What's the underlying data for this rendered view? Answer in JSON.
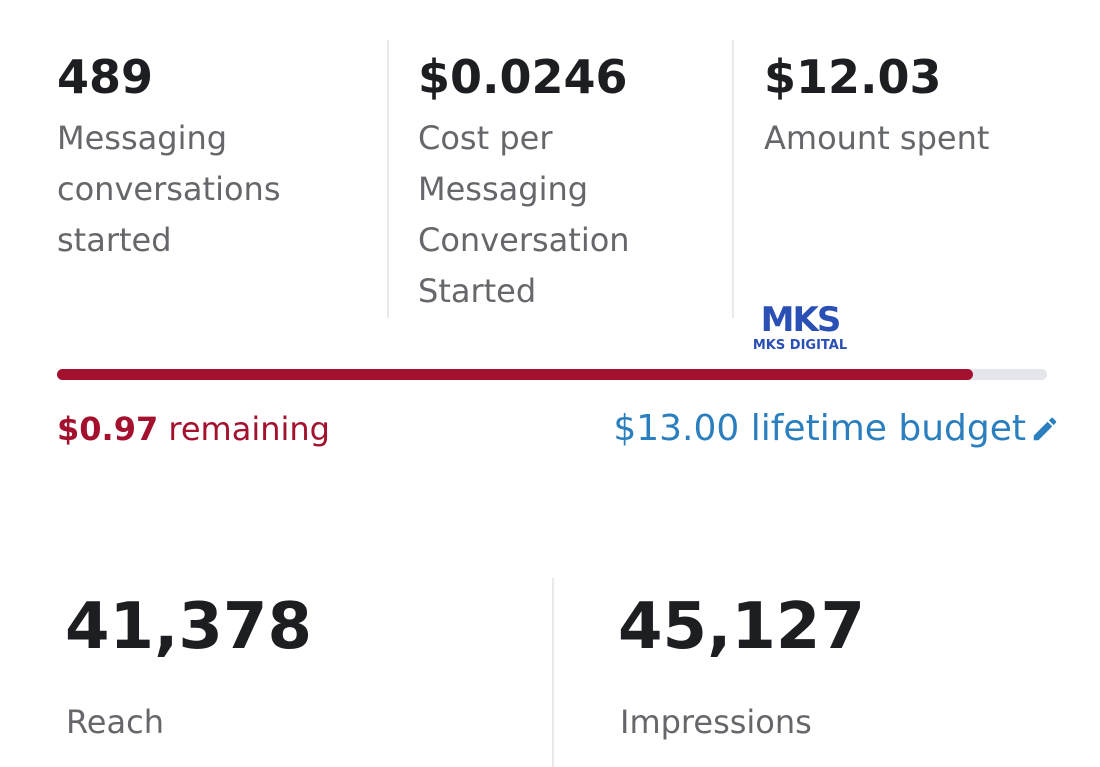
{
  "stats": [
    {
      "value": "489",
      "caption": "Messaging conversations started"
    },
    {
      "value": "$0.0246",
      "caption": "Cost per Messaging Conversation Started"
    },
    {
      "value": {
        "value": 12.03,
        "label": "$12.03"
      },
      "caption": "Amount spent"
    }
  ],
  "remaining": {
    "amount": {
      "value": 0.97,
      "label": "$0.97"
    },
    "text": "remaining"
  },
  "budget": {
    "amount": {
      "value": 13,
      "label": "$13.00"
    },
    "text": "lifetime budget"
  },
  "watermark": {
    "logo": "MKS",
    "text": "MKS DIGITAL"
  },
  "metrics": [
    {
      "value": "41,378",
      "caption": "Reach"
    },
    {
      "value": "45,127",
      "caption": "Impressions"
    }
  ]
}
